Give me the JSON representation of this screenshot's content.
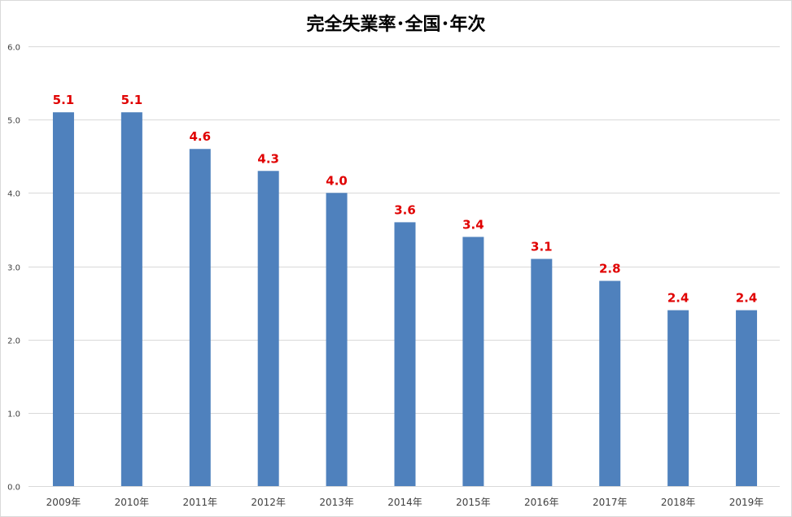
{
  "chart_data": {
    "type": "bar",
    "title": "完全失業率･全国･年次",
    "xlabel": "",
    "ylabel": "",
    "categories": [
      "2009年",
      "2010年",
      "2011年",
      "2012年",
      "2013年",
      "2014年",
      "2015年",
      "2016年",
      "2017年",
      "2018年",
      "2019年"
    ],
    "values": [
      5.1,
      5.1,
      4.6,
      4.3,
      4.0,
      3.6,
      3.4,
      3.1,
      2.8,
      2.4,
      2.4
    ],
    "data_labels": [
      "5.1",
      "5.1",
      "4.6",
      "4.3",
      "4.0",
      "3.6",
      "3.4",
      "3.1",
      "2.8",
      "2.4",
      "2.4"
    ],
    "ylim": [
      0,
      6
    ],
    "yticks": [
      0,
      1,
      2,
      3,
      4,
      5,
      6
    ],
    "ytick_labels": [
      "0.0",
      "1.0",
      "2.0",
      "3.0",
      "4.0",
      "5.0",
      "6.0"
    ],
    "grid": true,
    "legend": "none",
    "colors": {
      "bar": "#4f81bd",
      "data_label": "#e00000",
      "gridline": "#d9d9d9",
      "axis_text": "#404040"
    }
  }
}
